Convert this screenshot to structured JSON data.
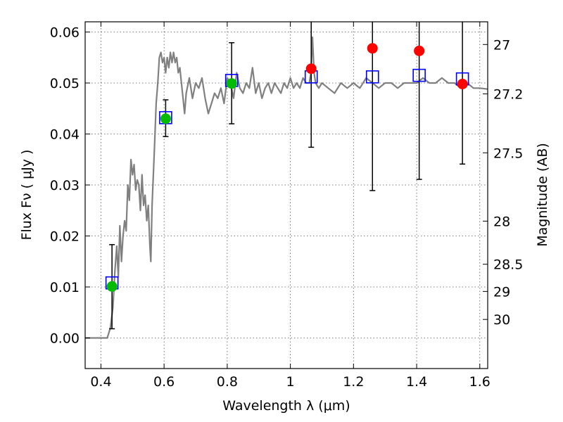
{
  "chart_data": {
    "type": "scatter",
    "xlabel": "Wavelength  λ (μm)",
    "ylabel": "Flux  Fν  ( μJy )",
    "y2label": "Magnitude (AB)",
    "xlim": [
      0.35,
      1.625
    ],
    "ylim": [
      -0.006,
      0.062
    ],
    "grid": true,
    "x_ticks": [
      0.4,
      0.6,
      0.8,
      1.0,
      1.2,
      1.4,
      1.6
    ],
    "x_tick_labels": [
      "0.4",
      "0.6",
      "0.8",
      "1",
      "1.2",
      "1.4",
      "1.6"
    ],
    "y_ticks": [
      0.0,
      0.01,
      0.02,
      0.03,
      0.04,
      0.05,
      0.06
    ],
    "y_tick_labels": [
      "0.00",
      "0.01",
      "0.02",
      "0.03",
      "0.04",
      "0.05",
      "0.06"
    ],
    "mag_ticks": [
      27,
      27.2,
      27.5,
      28,
      28.5,
      29,
      30
    ],
    "mag_tick_labels": [
      "27",
      "27.2",
      "27.5",
      "28",
      "28.5",
      "29",
      "30"
    ],
    "colors": {
      "model": "#808080",
      "box": "#0000ff",
      "detection": "#00bb00",
      "prediction": "#ff0000",
      "errorbar": "#000000"
    },
    "model_spectrum": {
      "x": [
        0.35,
        0.405,
        0.42,
        0.43,
        0.438,
        0.444,
        0.45,
        0.455,
        0.46,
        0.465,
        0.47,
        0.475,
        0.48,
        0.485,
        0.49,
        0.495,
        0.5,
        0.505,
        0.51,
        0.515,
        0.52,
        0.525,
        0.53,
        0.535,
        0.54,
        0.545,
        0.55,
        0.555,
        0.558,
        0.562,
        0.57,
        0.575,
        0.58,
        0.585,
        0.59,
        0.595,
        0.6,
        0.605,
        0.61,
        0.615,
        0.62,
        0.625,
        0.63,
        0.635,
        0.64,
        0.645,
        0.65,
        0.655,
        0.66,
        0.665,
        0.67,
        0.68,
        0.69,
        0.7,
        0.71,
        0.72,
        0.73,
        0.74,
        0.75,
        0.76,
        0.77,
        0.78,
        0.79,
        0.8,
        0.81,
        0.82,
        0.83,
        0.84,
        0.85,
        0.86,
        0.87,
        0.88,
        0.89,
        0.9,
        0.91,
        0.92,
        0.93,
        0.94,
        0.95,
        0.96,
        0.97,
        0.98,
        0.99,
        1.0,
        1.01,
        1.02,
        1.03,
        1.04,
        1.05,
        1.06,
        1.065,
        1.07,
        1.075,
        1.08,
        1.09,
        1.1,
        1.12,
        1.14,
        1.16,
        1.18,
        1.2,
        1.22,
        1.24,
        1.26,
        1.28,
        1.3,
        1.32,
        1.34,
        1.36,
        1.38,
        1.4,
        1.42,
        1.44,
        1.46,
        1.48,
        1.5,
        1.52,
        1.54,
        1.56,
        1.58,
        1.6,
        1.625
      ],
      "y": [
        0.0,
        0.0,
        0.0,
        0.002,
        0.006,
        0.013,
        0.018,
        0.012,
        0.022,
        0.015,
        0.02,
        0.023,
        0.021,
        0.03,
        0.027,
        0.035,
        0.032,
        0.034,
        0.029,
        0.031,
        0.03,
        0.025,
        0.032,
        0.026,
        0.028,
        0.023,
        0.026,
        0.018,
        0.015,
        0.026,
        0.038,
        0.046,
        0.05,
        0.055,
        0.056,
        0.054,
        0.055,
        0.052,
        0.055,
        0.053,
        0.056,
        0.054,
        0.056,
        0.054,
        0.055,
        0.052,
        0.053,
        0.05,
        0.047,
        0.044,
        0.048,
        0.051,
        0.047,
        0.05,
        0.049,
        0.051,
        0.047,
        0.044,
        0.046,
        0.048,
        0.047,
        0.049,
        0.046,
        0.051,
        0.05,
        0.047,
        0.052,
        0.049,
        0.048,
        0.05,
        0.049,
        0.053,
        0.048,
        0.05,
        0.047,
        0.049,
        0.05,
        0.048,
        0.05,
        0.049,
        0.048,
        0.05,
        0.049,
        0.051,
        0.049,
        0.05,
        0.049,
        0.051,
        0.05,
        0.05,
        0.052,
        0.059,
        0.052,
        0.05,
        0.049,
        0.05,
        0.049,
        0.048,
        0.05,
        0.049,
        0.05,
        0.049,
        0.051,
        0.05,
        0.049,
        0.05,
        0.05,
        0.049,
        0.05,
        0.05,
        0.05,
        0.051,
        0.05,
        0.05,
        0.051,
        0.05,
        0.05,
        0.049,
        0.05,
        0.049,
        0.049,
        0.0488
      ]
    },
    "boxes": {
      "x": [
        0.435,
        0.605,
        0.814,
        1.066,
        1.26,
        1.408,
        1.545
      ],
      "y": [
        0.0108,
        0.0432,
        0.0505,
        0.0512,
        0.0512,
        0.0515,
        0.0508
      ]
    },
    "detections": {
      "x": [
        0.435,
        0.605,
        0.814
      ],
      "y": [
        0.0101,
        0.043,
        0.0499
      ]
    },
    "predictions": {
      "x": [
        1.066,
        1.26,
        1.408,
        1.545
      ],
      "y": [
        0.0528,
        0.0568,
        0.0563,
        0.0498
      ]
    },
    "errorbars": {
      "x": [
        0.435,
        0.605,
        0.814,
        1.066,
        1.26,
        1.408,
        1.545
      ],
      "y_low": [
        0.0018,
        0.0395,
        0.042,
        0.0374,
        0.0289,
        0.0311,
        0.0341
      ],
      "y_high": [
        0.0183,
        0.0467,
        0.0579,
        0.062,
        0.062,
        0.062,
        0.062
      ]
    }
  }
}
